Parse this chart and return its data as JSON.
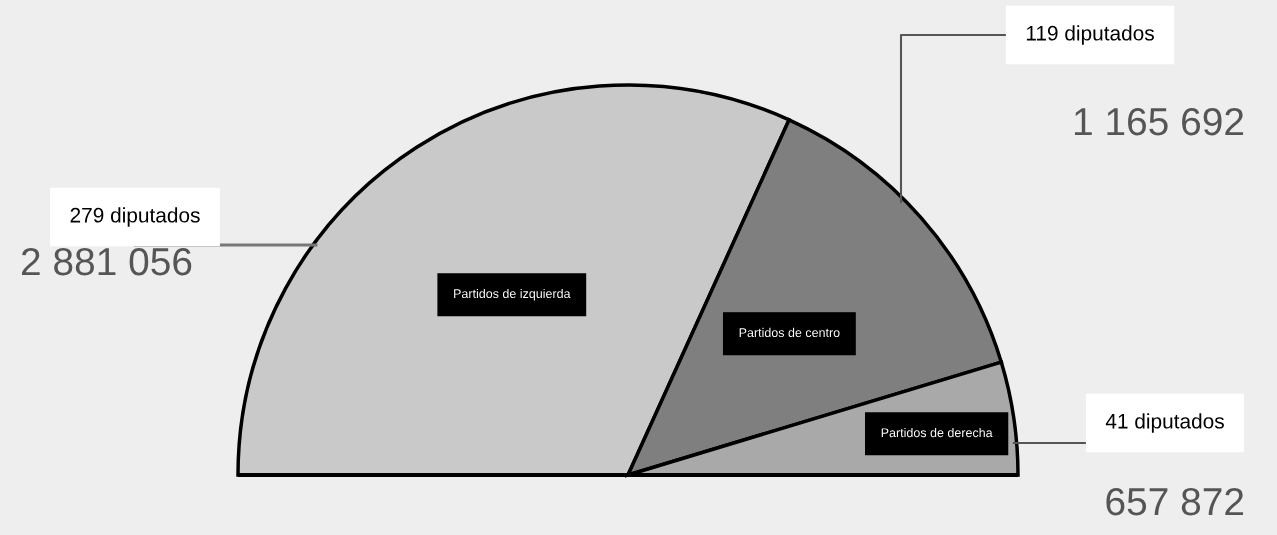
{
  "chart_data": {
    "type": "pie",
    "categories": [
      "Partidos de izquierda",
      "Partidos de centro",
      "Partidos de derecha"
    ],
    "values": [
      279,
      119,
      41
    ],
    "value_labels": [
      "279 diputados",
      "119 diputados",
      "41 diputados"
    ],
    "colors": [
      "#c9c9c9",
      "#7f7f7f",
      "#a9a9a9"
    ],
    "annotations": [
      "2 881 056",
      "1 165 692",
      "657 872"
    ]
  }
}
